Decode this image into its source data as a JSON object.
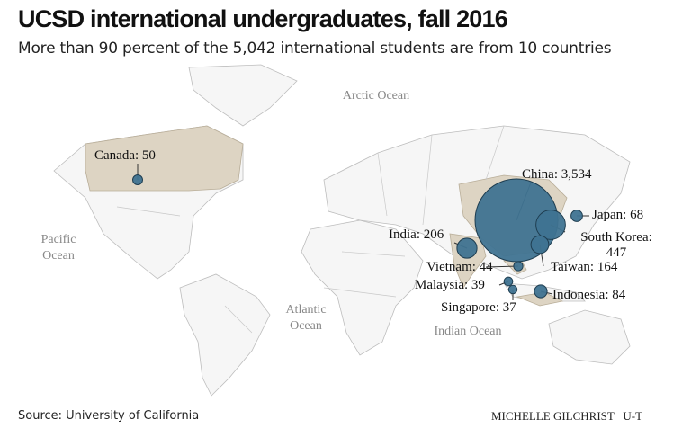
{
  "header": {
    "title": "UCSD international undergraduates, fall 2016",
    "subtitle": "More than 90 percent of the 5,042 international students are from 10 countries"
  },
  "oceans": [
    "Arctic Ocean",
    "Pacific Ocean",
    "Atlantic Ocean",
    "Indian Ocean"
  ],
  "countries": [
    {
      "name": "Canada",
      "value": 50,
      "label": "Canada: 50"
    },
    {
      "name": "China",
      "value": 3534,
      "label": "China: 3,534"
    },
    {
      "name": "Japan",
      "value": 68,
      "label": "Japan: 68"
    },
    {
      "name": "South Korea",
      "value": 447,
      "label": "South Korea: 447"
    },
    {
      "name": "Taiwan",
      "value": 164,
      "label": "Taiwan: 164"
    },
    {
      "name": "India",
      "value": 206,
      "label": "India: 206"
    },
    {
      "name": "Vietnam",
      "value": 44,
      "label": "Vietnam: 44"
    },
    {
      "name": "Malaysia",
      "value": 39,
      "label": "Malaysia: 39"
    },
    {
      "name": "Singapore",
      "value": 37,
      "label": "Singapore: 37"
    },
    {
      "name": "Indonesia",
      "value": 84,
      "label": "Indonesia: 84"
    }
  ],
  "footer": {
    "source": "Source: University of California",
    "credit": "MICHELLE GILCHRIST   U-T"
  }
}
